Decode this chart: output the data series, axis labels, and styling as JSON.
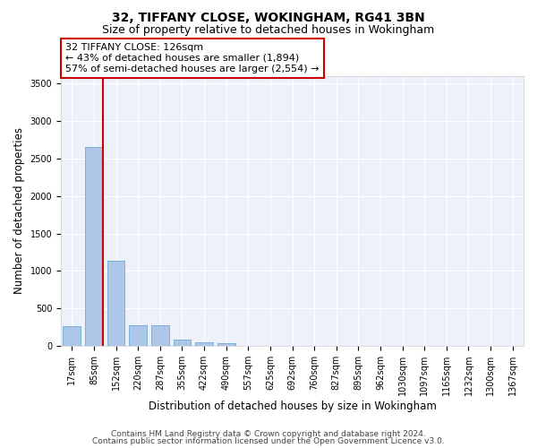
{
  "title1": "32, TIFFANY CLOSE, WOKINGHAM, RG41 3BN",
  "title2": "Size of property relative to detached houses in Wokingham",
  "xlabel": "Distribution of detached houses by size in Wokingham",
  "ylabel": "Number of detached properties",
  "bar_labels": [
    "17sqm",
    "85sqm",
    "152sqm",
    "220sqm",
    "287sqm",
    "355sqm",
    "422sqm",
    "490sqm",
    "557sqm",
    "625sqm",
    "692sqm",
    "760sqm",
    "827sqm",
    "895sqm",
    "962sqm",
    "1030sqm",
    "1097sqm",
    "1165sqm",
    "1232sqm",
    "1300sqm",
    "1367sqm"
  ],
  "bar_values": [
    270,
    2650,
    1140,
    280,
    280,
    90,
    55,
    35,
    0,
    0,
    0,
    0,
    0,
    0,
    0,
    0,
    0,
    0,
    0,
    0,
    0
  ],
  "bar_color": "#aec6e8",
  "bar_edge_color": "#5a9fd4",
  "vline_color": "#cc0000",
  "annotation_text": "32 TIFFANY CLOSE: 126sqm\n← 43% of detached houses are smaller (1,894)\n57% of semi-detached houses are larger (2,554) →",
  "annotation_box_color": "#cc0000",
  "ylim": [
    0,
    3600
  ],
  "yticks": [
    0,
    500,
    1000,
    1500,
    2000,
    2500,
    3000,
    3500
  ],
  "footer1": "Contains HM Land Registry data © Crown copyright and database right 2024.",
  "footer2": "Contains public sector information licensed under the Open Government Licence v3.0.",
  "background_color": "#edf1f9",
  "grid_color": "#ffffff",
  "title1_fontsize": 10,
  "title2_fontsize": 9,
  "xlabel_fontsize": 8.5,
  "ylabel_fontsize": 8.5,
  "tick_fontsize": 7,
  "footer_fontsize": 6.5
}
